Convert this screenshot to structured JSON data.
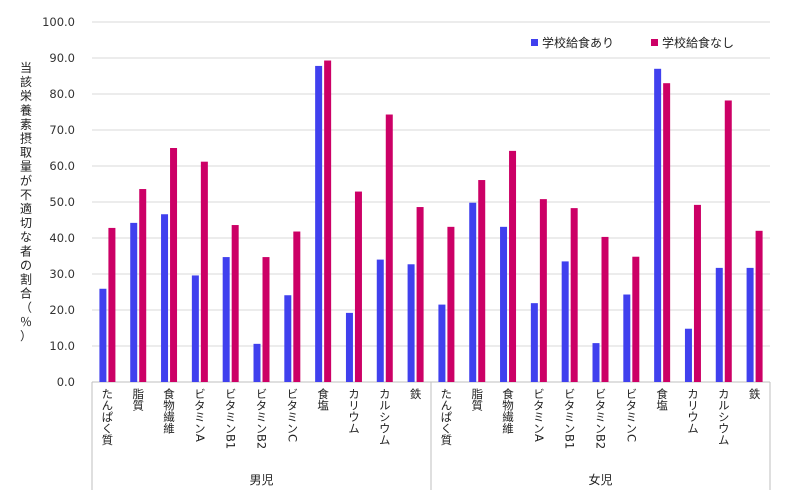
{
  "chart_data": {
    "type": "bar",
    "ylabel": "当該栄養素摂取量が不適切な者の割合（％）",
    "ylim": [
      0,
      100
    ],
    "ytick_step": 10,
    "ytick_format": "0.0",
    "grid": true,
    "legend_position": "top-right",
    "categories": [
      "たんぱく質",
      "脂質",
      "食物繊維",
      "ビタミンA",
      "ビタミンB1",
      "ビタミンB2",
      "ビタミンC",
      "食塩",
      "カリウム",
      "カルシウム",
      "鉄"
    ],
    "groups": [
      {
        "name": "男児",
        "series": [
          {
            "name": "学校給食あり",
            "values": [
              25.9,
              44.2,
              46.6,
              29.6,
              34.7,
              10.6,
              24.1,
              87.8,
              19.2,
              34.0,
              32.7
            ]
          },
          {
            "name": "学校給食なし",
            "values": [
              42.8,
              53.6,
              65.0,
              61.2,
              43.6,
              34.7,
              41.8,
              89.3,
              52.9,
              74.3,
              48.6
            ]
          }
        ]
      },
      {
        "name": "女児",
        "series": [
          {
            "name": "学校給食あり",
            "values": [
              21.5,
              49.8,
              43.1,
              21.9,
              33.5,
              10.8,
              24.3,
              87.0,
              14.8,
              31.7,
              31.7
            ]
          },
          {
            "name": "学校給食なし",
            "values": [
              43.1,
              56.1,
              64.2,
              50.8,
              48.3,
              40.3,
              34.8,
              83.0,
              49.2,
              78.2,
              42.0
            ]
          }
        ]
      }
    ],
    "colors": {
      "学校給食あり": "#4040ee",
      "学校給食なし": "#cc0066"
    }
  }
}
